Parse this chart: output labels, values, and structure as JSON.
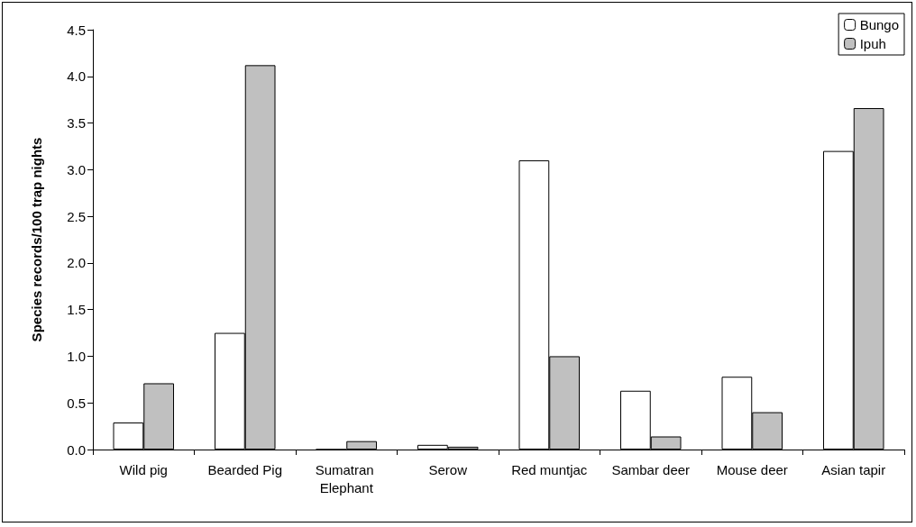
{
  "chart_data": {
    "type": "bar",
    "ylabel": "Species records/100 trap nights",
    "categories": [
      "Wild pig",
      "Bearded Pig",
      "Sumatran Elephant",
      "Serow",
      "Red muntjac",
      "Sambar deer",
      "Mouse deer",
      "Asian tapir"
    ],
    "series": [
      {
        "name": "Bungo",
        "color": "#ffffff",
        "values": [
          0.29,
          1.25,
          0,
          0.05,
          3.1,
          0.63,
          0.78,
          3.2
        ]
      },
      {
        "name": "Ipuh",
        "color": "#c0c0c0",
        "values": [
          0.71,
          4.12,
          0.09,
          0.03,
          1.0,
          0.14,
          0.4,
          3.66
        ]
      }
    ],
    "ylim": [
      0,
      4.5
    ],
    "yticks": [
      {
        "value": 0,
        "label": "0.0"
      },
      {
        "value": 0.5,
        "label": "0.5"
      },
      {
        "value": 1,
        "label": "1.0"
      },
      {
        "value": 1.5,
        "label": "1.5"
      },
      {
        "value": 2,
        "label": "2.0"
      },
      {
        "value": 2.5,
        "label": "2.5"
      },
      {
        "value": 3,
        "label": "3.0"
      },
      {
        "value": 3.5,
        "label": "3.5"
      },
      {
        "value": 4,
        "label": "4.0"
      },
      {
        "value": 4.5,
        "label": "4.5"
      }
    ],
    "grid": false,
    "legend": "top right"
  }
}
